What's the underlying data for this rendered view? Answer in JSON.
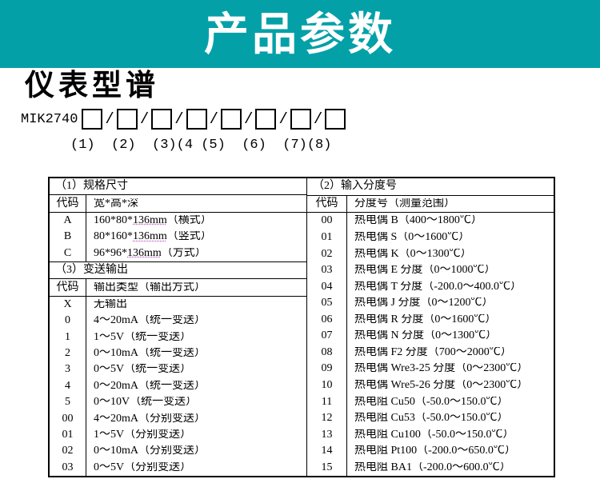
{
  "banner": {
    "title": "产品参数",
    "accent_color": "#04a0a8"
  },
  "heading": {
    "title": "仪表型谱"
  },
  "model": {
    "prefix": "MIK2740",
    "separator": "/",
    "labels_line": "(1)  (2)  (3)(4 (5)  (6)  (7)(8)"
  },
  "table": {
    "left": {
      "section1": {
        "title": "（1）规格尺寸",
        "col_code": "代码",
        "col_desc": "宽*高*深",
        "rows": [
          {
            "code": "A",
            "size_prefix": "160*80*",
            "size_dim": "136mm",
            "note": "（横式）"
          },
          {
            "code": "B",
            "size_prefix": "80*160*",
            "size_dim": "136mm",
            "note": "（竖式）"
          },
          {
            "code": "C",
            "size_prefix": "96*96*",
            "size_dim": "136mm",
            "note": "（方式）"
          }
        ]
      },
      "section3": {
        "title": "（3）变送输出",
        "col_code": "代码",
        "col_desc": "输出类型（输出方式）",
        "rows": [
          {
            "code": "X",
            "desc": "无输出"
          },
          {
            "code": "0",
            "desc": "4～20mA（统一变送）"
          },
          {
            "code": "1",
            "desc": "1～5V（统一变送）"
          },
          {
            "code": "2",
            "desc": "0～10mA（统一变送）"
          },
          {
            "code": "3",
            "desc": "0～5V（统一变送）"
          },
          {
            "code": "4",
            "desc": "0～20mA（统一变送）"
          },
          {
            "code": "5",
            "desc": "0～10V（统一变送）"
          },
          {
            "code": "00",
            "desc": "4～20mA（分别变送）"
          },
          {
            "code": "01",
            "desc": "1～5V（分别变送）"
          },
          {
            "code": "02",
            "desc": "0～10mA（分别变送）"
          },
          {
            "code": "03",
            "desc": "0～5V（分别变送）"
          }
        ]
      }
    },
    "right": {
      "section2": {
        "title": "（2）输入分度号",
        "col_code": "代码",
        "col_desc": "分度号（测量范围）",
        "rows": [
          {
            "code": "00",
            "desc": "热电偶 B（400～1800℃）"
          },
          {
            "code": "01",
            "desc": "热电偶 S（0～1600℃）"
          },
          {
            "code": "02",
            "desc": "热电偶 K（0～1300℃）"
          },
          {
            "code": "03",
            "desc": "热电偶 E 分度（0～1000℃）"
          },
          {
            "code": "04",
            "desc": "热电偶 T 分度（-200.0～400.0℃）"
          },
          {
            "code": "05",
            "desc": "热电偶 J 分度（0～1200℃）"
          },
          {
            "code": "06",
            "desc": "热电偶 R 分度（0～1600℃）"
          },
          {
            "code": "07",
            "desc": "热电偶 N 分度（0～1300℃）"
          },
          {
            "code": "08",
            "desc": "热电偶 F2 分度（700～2000℃）"
          },
          {
            "code": "09",
            "desc": "热电偶 Wre3-25 分度（0～2300℃）"
          },
          {
            "code": "10",
            "desc": "热电偶 Wre5-26 分度（0～2300℃）"
          },
          {
            "code": "11",
            "desc": "热电阻 Cu50（-50.0～150.0℃）"
          },
          {
            "code": "12",
            "desc": "热电阻 Cu53（-50.0～150.0℃）"
          },
          {
            "code": "13",
            "desc": "热电阻 Cu100（-50.0～150.0℃）"
          },
          {
            "code": "14",
            "desc": "热电阻 Pt100（-200.0～650.0℃）"
          },
          {
            "code": "15",
            "desc": "热电阻 BA1（-200.0～600.0℃）"
          }
        ]
      }
    }
  }
}
